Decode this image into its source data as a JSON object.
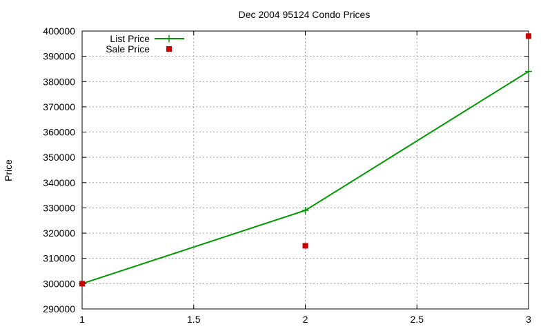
{
  "chart_data": {
    "type": "line",
    "title": "Dec 2004 95124 Condo Prices",
    "xlabel": "",
    "ylabel": "Price",
    "xlim": [
      1,
      3
    ],
    "ylim": [
      290000,
      400000
    ],
    "x_ticks": [
      "1",
      "1.5",
      "2",
      "2.5",
      "3"
    ],
    "x_tick_values": [
      1,
      1.5,
      2,
      2.5,
      3
    ],
    "y_ticks": [
      "290000",
      "300000",
      "310000",
      "320000",
      "330000",
      "340000",
      "350000",
      "360000",
      "370000",
      "380000",
      "390000",
      "400000"
    ],
    "y_tick_values": [
      290000,
      300000,
      310000,
      320000,
      330000,
      340000,
      350000,
      360000,
      370000,
      380000,
      390000,
      400000
    ],
    "grid": true,
    "legend_position": "top-left",
    "series": [
      {
        "name": "List Price",
        "style": "linespoints",
        "color": "#009900",
        "x": [
          1,
          2,
          3
        ],
        "y": [
          300000,
          329000,
          384000
        ]
      },
      {
        "name": "Sale Price",
        "style": "points",
        "color": "#cc0000",
        "x": [
          1,
          2,
          3
        ],
        "y": [
          300000,
          315000,
          398000
        ]
      }
    ]
  }
}
